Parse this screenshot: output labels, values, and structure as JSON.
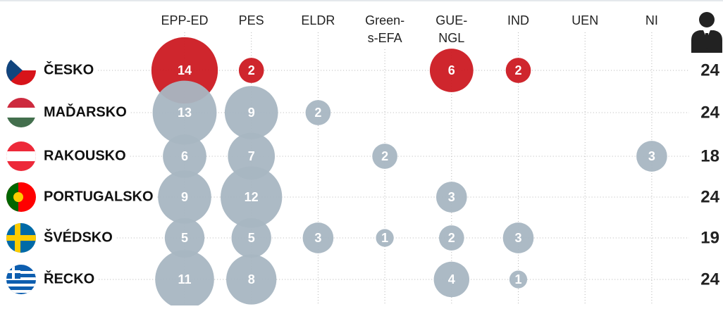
{
  "chart_data": {
    "type": "bubble",
    "categories": [
      [
        "EPP-ED"
      ],
      [
        "PES"
      ],
      [
        "ELDR"
      ],
      [
        "Green-",
        "s-EFA"
      ],
      [
        "GUE-",
        "NGL"
      ],
      [
        "IND"
      ],
      [
        "UEN"
      ],
      [
        "NI"
      ]
    ],
    "series": [
      {
        "name": "ČESKO",
        "color": "#cc1a22",
        "values": [
          14,
          2,
          null,
          null,
          6,
          2,
          null,
          null
        ],
        "total": 24
      },
      {
        "name": "MAĎARSKO",
        "color": "#a8b6c2",
        "values": [
          13,
          9,
          2,
          null,
          null,
          null,
          null,
          null
        ],
        "total": 24
      },
      {
        "name": "RAKOUSKO",
        "color": "#a8b6c2",
        "values": [
          6,
          7,
          null,
          2,
          null,
          null,
          null,
          3
        ],
        "total": 18
      },
      {
        "name": "PORTUGALSKO",
        "color": "#a8b6c2",
        "values": [
          9,
          12,
          null,
          null,
          3,
          null,
          null,
          null
        ],
        "total": 24
      },
      {
        "name": "ŠVÉDSKO",
        "color": "#a8b6c2",
        "values": [
          5,
          5,
          3,
          1,
          2,
          3,
          null,
          null
        ],
        "total": 19
      },
      {
        "name": "ŘECKO",
        "color": "#a8b6c2",
        "values": [
          11,
          8,
          null,
          null,
          4,
          1,
          null,
          null
        ],
        "total": 24
      }
    ]
  }
}
